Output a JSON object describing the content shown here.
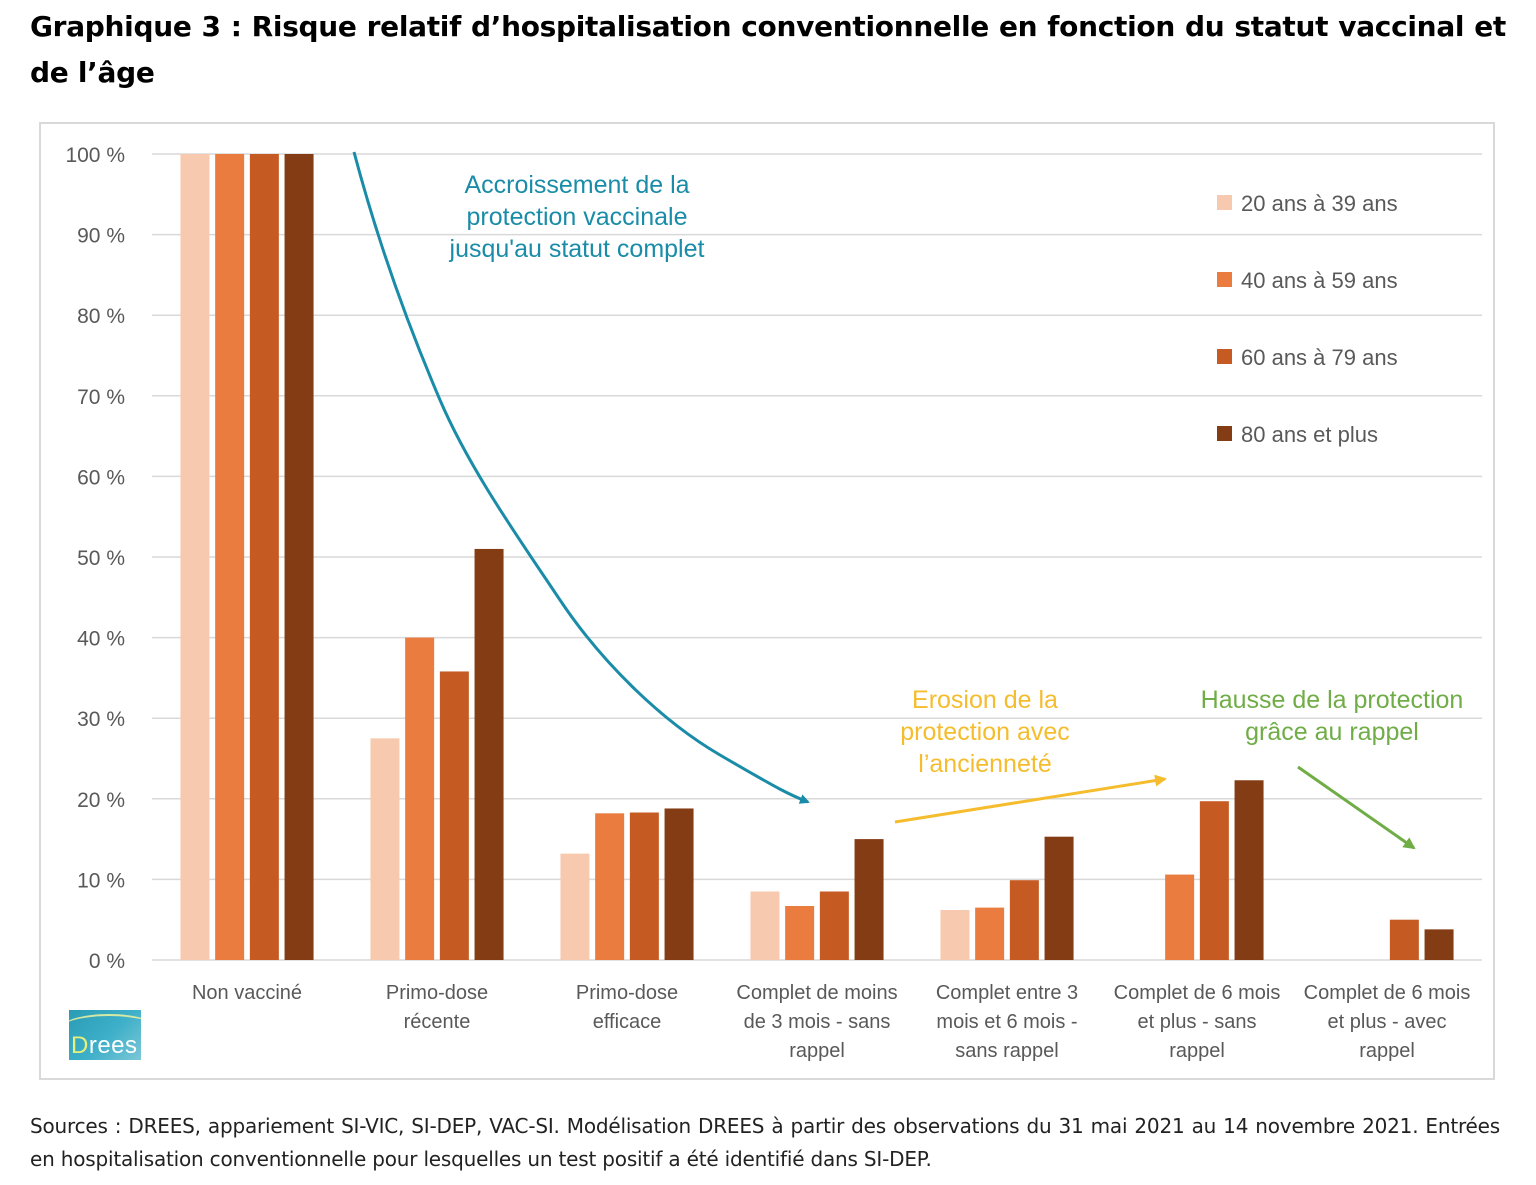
{
  "title": "Graphique 3 : Risque relatif d’hospitalisation conventionnelle en fonction du statut vaccinal et de l’âge",
  "logo": {
    "text_first": "D",
    "text_rest": "rees"
  },
  "source_note": "Sources : DREES, appariement SI-VIC, SI-DEP, VAC-SI. Modélisation DREES à partir des observations du 31 mai 2021 au 14 novembre 2021. Entrées en hospitalisation conventionnelle pour lesquelles un test positif a été identifié dans SI-DEP.",
  "colors": {
    "s20_39": "#f7c9ae",
    "s40_59": "#e97c3e",
    "s60_79": "#c55a22",
    "s80": "#843c15",
    "gridline": "#d9d9d9",
    "annotation_teal": "#1a8ca8",
    "annotation_yellow": "#f5bd2d",
    "annotation_green": "#70ad47"
  },
  "chart_data": {
    "type": "bar",
    "title": "Risque relatif d’hospitalisation conventionnelle en fonction du statut vaccinal et de l’âge",
    "xlabel": "",
    "ylabel": "",
    "ylim": [
      0,
      100
    ],
    "y_ticks": [
      0,
      10,
      20,
      30,
      40,
      50,
      60,
      70,
      80,
      90,
      100
    ],
    "y_tick_labels": [
      "0 %",
      "10 %",
      "20 %",
      "30 %",
      "40 %",
      "50 %",
      "60 %",
      "70 %",
      "80 %",
      "90 %",
      "100 %"
    ],
    "grid": true,
    "legend_position": "top-right",
    "categories": [
      [
        "Non vacciné"
      ],
      [
        "Primo-dose",
        "récente"
      ],
      [
        "Primo-dose",
        "efficace"
      ],
      [
        "Complet de moins",
        "de 3 mois - sans",
        "rappel"
      ],
      [
        "Complet entre 3",
        "mois et 6 mois -",
        "sans rappel"
      ],
      [
        "Complet de 6 mois",
        "et plus - sans",
        "rappel"
      ],
      [
        "Complet de 6 mois",
        "et plus - avec",
        "rappel"
      ]
    ],
    "series": [
      {
        "name": "20 ans à 39 ans",
        "color_key": "s20_39",
        "values": [
          100,
          27.5,
          13.2,
          8.5,
          6.2,
          null,
          null
        ]
      },
      {
        "name": "40 ans à 59 ans",
        "color_key": "s40_59",
        "values": [
          100,
          40.0,
          18.2,
          6.7,
          6.5,
          10.6,
          null
        ]
      },
      {
        "name": "60 ans à 79 ans",
        "color_key": "s60_79",
        "values": [
          100,
          35.8,
          18.3,
          8.5,
          9.9,
          19.7,
          5.0
        ]
      },
      {
        "name": "80 ans et plus",
        "color_key": "s80",
        "values": [
          100,
          51.0,
          18.8,
          15.0,
          15.3,
          22.3,
          3.8
        ]
      }
    ],
    "annotations": [
      {
        "id": "accroissement",
        "lines": [
          "Accroissement de la",
          "protection vaccinale",
          "jusqu'au statut complet"
        ],
        "color_key": "annotation_teal"
      },
      {
        "id": "erosion",
        "lines": [
          "Erosion de la",
          "protection avec",
          "l’ancienneté"
        ],
        "color_key": "annotation_yellow"
      },
      {
        "id": "hausse",
        "lines": [
          "Hausse de la protection",
          "grâce au rappel"
        ],
        "color_key": "annotation_green"
      }
    ]
  }
}
